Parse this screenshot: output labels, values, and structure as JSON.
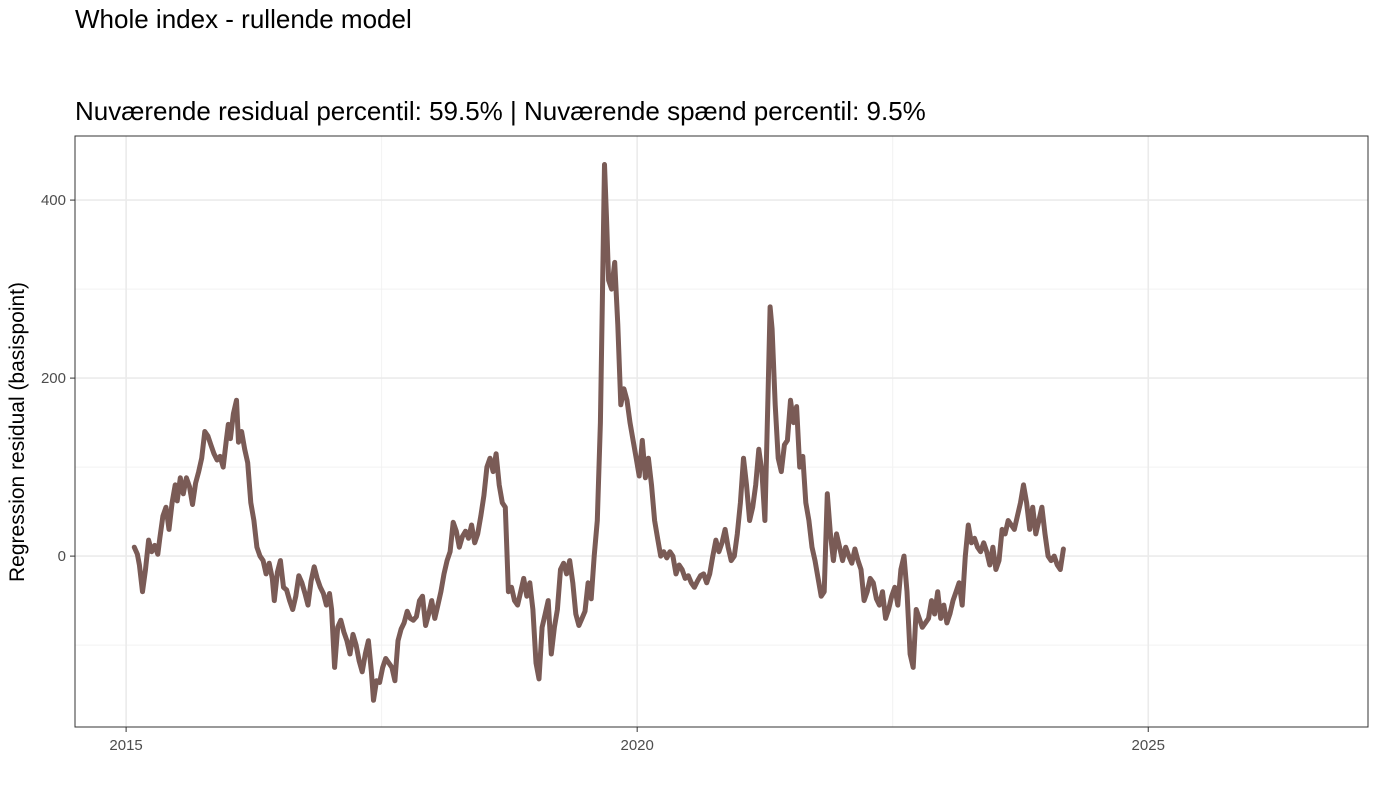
{
  "chart_data": {
    "type": "line",
    "title": "Whole index - rullende model",
    "subtitle": "Nuværende residual percentil: 59.5% | Nuværende spænd percentil: 9.5%",
    "xlabel": "",
    "ylabel": "Regression residual (basispoint)",
    "x_ticks": [
      2015,
      2020,
      2025
    ],
    "x_tick_labels": [
      "2015",
      "2020",
      "2025"
    ],
    "y_ticks": [
      0,
      200,
      400
    ],
    "y_tick_labels": [
      "0",
      "200",
      "400"
    ],
    "xlim": [
      2014.5,
      2027.15
    ],
    "ylim": [
      -192,
      472
    ],
    "grid": true,
    "line_color": "#7a5b56",
    "series": [
      {
        "points": [
          [
            2015.08,
            10
          ],
          [
            2015.11,
            2
          ],
          [
            2015.13,
            -10
          ],
          [
            2015.16,
            -40
          ],
          [
            2015.19,
            -15
          ],
          [
            2015.22,
            18
          ],
          [
            2015.25,
            5
          ],
          [
            2015.28,
            12
          ],
          [
            2015.31,
            2
          ],
          [
            2015.33,
            20
          ],
          [
            2015.36,
            45
          ],
          [
            2015.39,
            55
          ],
          [
            2015.42,
            30
          ],
          [
            2015.45,
            60
          ],
          [
            2015.48,
            80
          ],
          [
            2015.5,
            62
          ],
          [
            2015.53,
            88
          ],
          [
            2015.56,
            70
          ],
          [
            2015.59,
            88
          ],
          [
            2015.62,
            78
          ],
          [
            2015.65,
            58
          ],
          [
            2015.68,
            82
          ],
          [
            2015.71,
            95
          ],
          [
            2015.74,
            110
          ],
          [
            2015.77,
            140
          ],
          [
            2015.8,
            135
          ],
          [
            2015.83,
            125
          ],
          [
            2015.86,
            115
          ],
          [
            2015.89,
            108
          ],
          [
            2015.92,
            112
          ],
          [
            2015.95,
            100
          ],
          [
            2015.98,
            130
          ],
          [
            2016.0,
            148
          ],
          [
            2016.02,
            132
          ],
          [
            2016.05,
            160
          ],
          [
            2016.08,
            175
          ],
          [
            2016.1,
            128
          ],
          [
            2016.13,
            140
          ],
          [
            2016.16,
            120
          ],
          [
            2016.19,
            105
          ],
          [
            2016.22,
            60
          ],
          [
            2016.25,
            40
          ],
          [
            2016.28,
            10
          ],
          [
            2016.31,
            0
          ],
          [
            2016.34,
            -5
          ],
          [
            2016.37,
            -20
          ],
          [
            2016.4,
            -8
          ],
          [
            2016.43,
            -25
          ],
          [
            2016.45,
            -50
          ],
          [
            2016.48,
            -18
          ],
          [
            2016.51,
            -5
          ],
          [
            2016.54,
            -35
          ],
          [
            2016.57,
            -38
          ],
          [
            2016.6,
            -50
          ],
          [
            2016.63,
            -60
          ],
          [
            2016.66,
            -45
          ],
          [
            2016.69,
            -22
          ],
          [
            2016.72,
            -30
          ],
          [
            2016.75,
            -42
          ],
          [
            2016.78,
            -55
          ],
          [
            2016.81,
            -28
          ],
          [
            2016.84,
            -12
          ],
          [
            2016.87,
            -25
          ],
          [
            2016.9,
            -35
          ],
          [
            2016.93,
            -42
          ],
          [
            2016.96,
            -55
          ],
          [
            2016.99,
            -42
          ],
          [
            2017.01,
            -60
          ],
          [
            2017.04,
            -125
          ],
          [
            2017.07,
            -80
          ],
          [
            2017.1,
            -72
          ],
          [
            2017.13,
            -85
          ],
          [
            2017.16,
            -95
          ],
          [
            2017.19,
            -110
          ],
          [
            2017.22,
            -88
          ],
          [
            2017.25,
            -100
          ],
          [
            2017.28,
            -118
          ],
          [
            2017.31,
            -130
          ],
          [
            2017.34,
            -110
          ],
          [
            2017.37,
            -95
          ],
          [
            2017.4,
            -130
          ],
          [
            2017.42,
            -162
          ],
          [
            2017.45,
            -140
          ],
          [
            2017.48,
            -142
          ],
          [
            2017.51,
            -125
          ],
          [
            2017.54,
            -115
          ],
          [
            2017.57,
            -120
          ],
          [
            2017.6,
            -125
          ],
          [
            2017.63,
            -140
          ],
          [
            2017.66,
            -95
          ],
          [
            2017.69,
            -82
          ],
          [
            2017.72,
            -75
          ],
          [
            2017.75,
            -62
          ],
          [
            2017.78,
            -70
          ],
          [
            2017.81,
            -72
          ],
          [
            2017.84,
            -68
          ],
          [
            2017.87,
            -50
          ],
          [
            2017.9,
            -45
          ],
          [
            2017.93,
            -78
          ],
          [
            2017.96,
            -65
          ],
          [
            2017.99,
            -50
          ],
          [
            2018.02,
            -70
          ],
          [
            2018.05,
            -55
          ],
          [
            2018.08,
            -40
          ],
          [
            2018.11,
            -20
          ],
          [
            2018.14,
            -5
          ],
          [
            2018.17,
            5
          ],
          [
            2018.2,
            38
          ],
          [
            2018.23,
            28
          ],
          [
            2018.26,
            10
          ],
          [
            2018.29,
            22
          ],
          [
            2018.32,
            28
          ],
          [
            2018.35,
            20
          ],
          [
            2018.38,
            35
          ],
          [
            2018.41,
            15
          ],
          [
            2018.44,
            25
          ],
          [
            2018.47,
            45
          ],
          [
            2018.5,
            68
          ],
          [
            2018.53,
            100
          ],
          [
            2018.56,
            110
          ],
          [
            2018.59,
            95
          ],
          [
            2018.62,
            115
          ],
          [
            2018.65,
            80
          ],
          [
            2018.68,
            60
          ],
          [
            2018.71,
            55
          ],
          [
            2018.74,
            -40
          ],
          [
            2018.77,
            -35
          ],
          [
            2018.8,
            -50
          ],
          [
            2018.83,
            -55
          ],
          [
            2018.86,
            -40
          ],
          [
            2018.89,
            -25
          ],
          [
            2018.92,
            -45
          ],
          [
            2018.95,
            -30
          ],
          [
            2018.98,
            -60
          ],
          [
            2019.01,
            -120
          ],
          [
            2019.04,
            -138
          ],
          [
            2019.07,
            -80
          ],
          [
            2019.1,
            -65
          ],
          [
            2019.13,
            -50
          ],
          [
            2019.16,
            -110
          ],
          [
            2019.19,
            -80
          ],
          [
            2019.22,
            -60
          ],
          [
            2019.25,
            -15
          ],
          [
            2019.28,
            -8
          ],
          [
            2019.31,
            -20
          ],
          [
            2019.34,
            -5
          ],
          [
            2019.37,
            -30
          ],
          [
            2019.4,
            -65
          ],
          [
            2019.43,
            -78
          ],
          [
            2019.46,
            -70
          ],
          [
            2019.49,
            -62
          ],
          [
            2019.52,
            -30
          ],
          [
            2019.55,
            -48
          ],
          [
            2019.58,
            0
          ],
          [
            2019.61,
            40
          ],
          [
            2019.64,
            150
          ],
          [
            2019.66,
            290
          ],
          [
            2019.68,
            440
          ],
          [
            2019.7,
            380
          ],
          [
            2019.72,
            310
          ],
          [
            2019.75,
            300
          ],
          [
            2019.78,
            330
          ],
          [
            2019.81,
            260
          ],
          [
            2019.84,
            170
          ],
          [
            2019.87,
            188
          ],
          [
            2019.9,
            175
          ],
          [
            2019.93,
            150
          ],
          [
            2019.96,
            130
          ],
          [
            2019.99,
            110
          ],
          [
            2020.02,
            90
          ],
          [
            2020.05,
            130
          ],
          [
            2020.08,
            88
          ],
          [
            2020.11,
            110
          ],
          [
            2020.14,
            80
          ],
          [
            2020.17,
            40
          ],
          [
            2020.2,
            20
          ],
          [
            2020.23,
            0
          ],
          [
            2020.26,
            5
          ],
          [
            2020.29,
            -2
          ],
          [
            2020.32,
            5
          ],
          [
            2020.35,
            0
          ],
          [
            2020.38,
            -20
          ],
          [
            2020.41,
            -10
          ],
          [
            2020.44,
            -15
          ],
          [
            2020.47,
            -25
          ],
          [
            2020.5,
            -22
          ],
          [
            2020.53,
            -30
          ],
          [
            2020.56,
            -35
          ],
          [
            2020.59,
            -28
          ],
          [
            2020.62,
            -22
          ],
          [
            2020.65,
            -20
          ],
          [
            2020.68,
            -30
          ],
          [
            2020.71,
            -20
          ],
          [
            2020.74,
            0
          ],
          [
            2020.77,
            18
          ],
          [
            2020.8,
            5
          ],
          [
            2020.83,
            15
          ],
          [
            2020.86,
            30
          ],
          [
            2020.89,
            10
          ],
          [
            2020.92,
            -5
          ],
          [
            2020.95,
            0
          ],
          [
            2020.98,
            25
          ],
          [
            2021.01,
            60
          ],
          [
            2021.04,
            110
          ],
          [
            2021.07,
            80
          ],
          [
            2021.1,
            40
          ],
          [
            2021.13,
            55
          ],
          [
            2021.16,
            80
          ],
          [
            2021.19,
            120
          ],
          [
            2021.22,
            95
          ],
          [
            2021.25,
            40
          ],
          [
            2021.28,
            180
          ],
          [
            2021.3,
            280
          ],
          [
            2021.32,
            255
          ],
          [
            2021.35,
            170
          ],
          [
            2021.38,
            110
          ],
          [
            2021.41,
            95
          ],
          [
            2021.44,
            125
          ],
          [
            2021.47,
            130
          ],
          [
            2021.5,
            175
          ],
          [
            2021.53,
            150
          ],
          [
            2021.56,
            168
          ],
          [
            2021.59,
            100
          ],
          [
            2021.62,
            112
          ],
          [
            2021.65,
            60
          ],
          [
            2021.68,
            40
          ],
          [
            2021.71,
            10
          ],
          [
            2021.74,
            -5
          ],
          [
            2021.77,
            -25
          ],
          [
            2021.8,
            -45
          ],
          [
            2021.83,
            -40
          ],
          [
            2021.86,
            70
          ],
          [
            2021.89,
            25
          ],
          [
            2021.92,
            -5
          ],
          [
            2021.95,
            25
          ],
          [
            2021.98,
            10
          ],
          [
            2022.01,
            -5
          ],
          [
            2022.04,
            10
          ],
          [
            2022.07,
            0
          ],
          [
            2022.1,
            -8
          ],
          [
            2022.13,
            8
          ],
          [
            2022.16,
            -5
          ],
          [
            2022.19,
            -15
          ],
          [
            2022.22,
            -50
          ],
          [
            2022.25,
            -40
          ],
          [
            2022.28,
            -25
          ],
          [
            2022.31,
            -30
          ],
          [
            2022.34,
            -48
          ],
          [
            2022.37,
            -55
          ],
          [
            2022.4,
            -40
          ],
          [
            2022.43,
            -70
          ],
          [
            2022.46,
            -60
          ],
          [
            2022.49,
            -45
          ],
          [
            2022.52,
            -35
          ],
          [
            2022.55,
            -55
          ],
          [
            2022.58,
            -15
          ],
          [
            2022.61,
            0
          ],
          [
            2022.64,
            -40
          ],
          [
            2022.67,
            -110
          ],
          [
            2022.7,
            -125
          ],
          [
            2022.73,
            -60
          ],
          [
            2022.76,
            -70
          ],
          [
            2022.79,
            -80
          ],
          [
            2022.82,
            -75
          ],
          [
            2022.85,
            -70
          ],
          [
            2022.88,
            -50
          ],
          [
            2022.91,
            -65
          ],
          [
            2022.94,
            -40
          ],
          [
            2022.97,
            -70
          ],
          [
            2023.0,
            -55
          ],
          [
            2023.03,
            -75
          ],
          [
            2023.06,
            -65
          ],
          [
            2023.09,
            -50
          ],
          [
            2023.12,
            -40
          ],
          [
            2023.15,
            -30
          ],
          [
            2023.18,
            -55
          ],
          [
            2023.21,
            0
          ],
          [
            2023.24,
            35
          ],
          [
            2023.27,
            15
          ],
          [
            2023.3,
            20
          ],
          [
            2023.33,
            10
          ],
          [
            2023.36,
            5
          ],
          [
            2023.39,
            15
          ],
          [
            2023.42,
            5
          ],
          [
            2023.45,
            -10
          ],
          [
            2023.48,
            10
          ],
          [
            2023.51,
            -15
          ],
          [
            2023.54,
            -5
          ],
          [
            2023.57,
            30
          ],
          [
            2023.6,
            25
          ],
          [
            2023.63,
            40
          ],
          [
            2023.66,
            35
          ],
          [
            2023.69,
            30
          ],
          [
            2023.72,
            45
          ],
          [
            2023.75,
            60
          ],
          [
            2023.78,
            80
          ],
          [
            2023.81,
            60
          ],
          [
            2023.84,
            30
          ],
          [
            2023.87,
            55
          ],
          [
            2023.9,
            25
          ],
          [
            2023.93,
            40
          ],
          [
            2023.96,
            55
          ],
          [
            2023.99,
            25
          ],
          [
            2024.02,
            0
          ],
          [
            2024.05,
            -5
          ],
          [
            2024.08,
            0
          ],
          [
            2024.11,
            -10
          ],
          [
            2024.14,
            -15
          ],
          [
            2024.17,
            8
          ]
        ]
      }
    ]
  }
}
